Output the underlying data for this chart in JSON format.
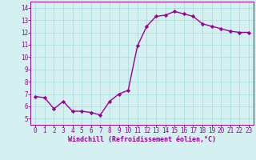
{
  "x": [
    0,
    1,
    2,
    3,
    4,
    5,
    6,
    7,
    8,
    9,
    10,
    11,
    12,
    13,
    14,
    15,
    16,
    17,
    18,
    19,
    20,
    21,
    22,
    23
  ],
  "y": [
    6.8,
    6.7,
    5.8,
    6.4,
    5.6,
    5.6,
    5.5,
    5.3,
    6.4,
    7.0,
    7.3,
    10.9,
    12.5,
    13.3,
    13.4,
    13.7,
    13.5,
    13.3,
    12.7,
    12.5,
    12.3,
    12.1,
    12.0,
    12.0
  ],
  "line_color": "#990099",
  "marker": "D",
  "marker_size": 2.2,
  "bg_color": "#d4f0f0",
  "grid_color": "#aadddd",
  "xlabel": "Windchill (Refroidissement éolien,°C)",
  "xlabel_color": "#990099",
  "tick_color": "#990099",
  "ylim": [
    4.5,
    14.5
  ],
  "xlim": [
    -0.5,
    23.5
  ],
  "yticks": [
    5,
    6,
    7,
    8,
    9,
    10,
    11,
    12,
    13,
    14
  ],
  "xticks": [
    0,
    1,
    2,
    3,
    4,
    5,
    6,
    7,
    8,
    9,
    10,
    11,
    12,
    13,
    14,
    15,
    16,
    17,
    18,
    19,
    20,
    21,
    22,
    23
  ],
  "linewidth": 1.0,
  "tick_fontsize": 5.5,
  "xlabel_fontsize": 6.0
}
